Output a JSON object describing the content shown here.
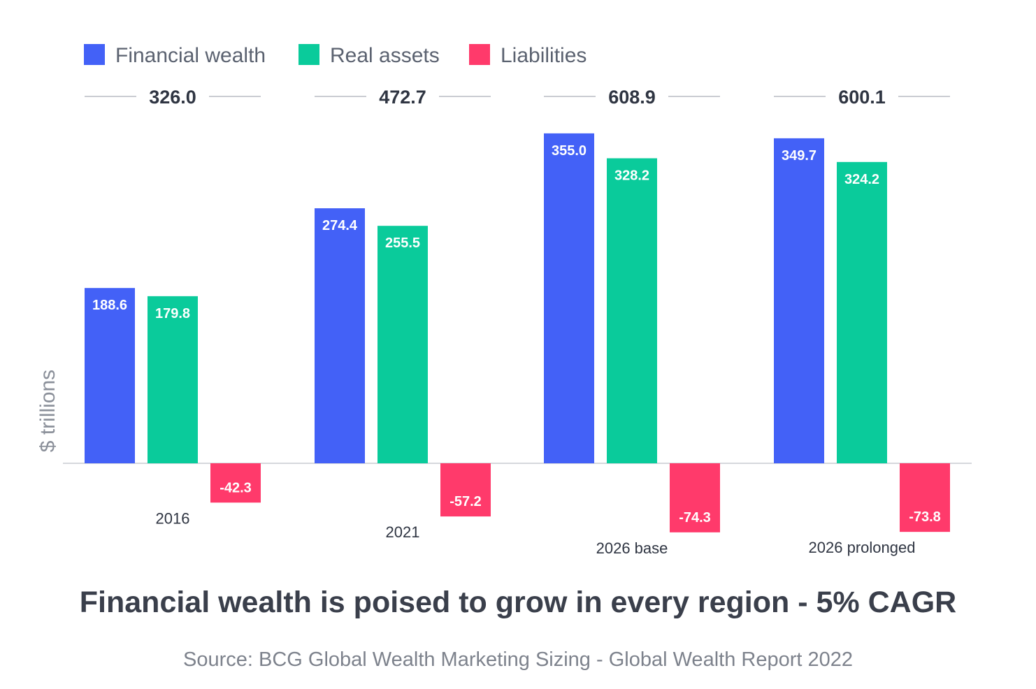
{
  "chart_data": {
    "type": "bar",
    "title": "Financial wealth is poised to grow in every region - 5% CAGR",
    "source": "Source: BCG Global Wealth Marketing Sizing - Global Wealth Report 2022",
    "ylabel": "$ trillions",
    "categories": [
      "2016",
      "2021",
      "2026 base",
      "2026 prolonged"
    ],
    "totals": [
      "326.0",
      "472.7",
      "608.9",
      "600.1"
    ],
    "series": [
      {
        "name": "Financial wealth",
        "color": "#4361f7",
        "values": [
          188.6,
          274.4,
          355.0,
          349.7
        ],
        "labels": [
          "188.6",
          "274.4",
          "355.0",
          "349.7"
        ]
      },
      {
        "name": "Real assets",
        "color": "#0acb9b",
        "values": [
          179.8,
          255.5,
          328.2,
          324.2
        ],
        "labels": [
          "179.8",
          "255.5",
          "328.2",
          "324.2"
        ]
      },
      {
        "name": "Liabilities",
        "color": "#ff3a6b",
        "values": [
          -42.3,
          -57.2,
          -74.3,
          -73.8
        ],
        "labels": [
          "-42.3",
          "-57.2",
          "-74.3",
          "-73.8"
        ]
      }
    ],
    "legend_position": "top-left",
    "grid": false
  }
}
